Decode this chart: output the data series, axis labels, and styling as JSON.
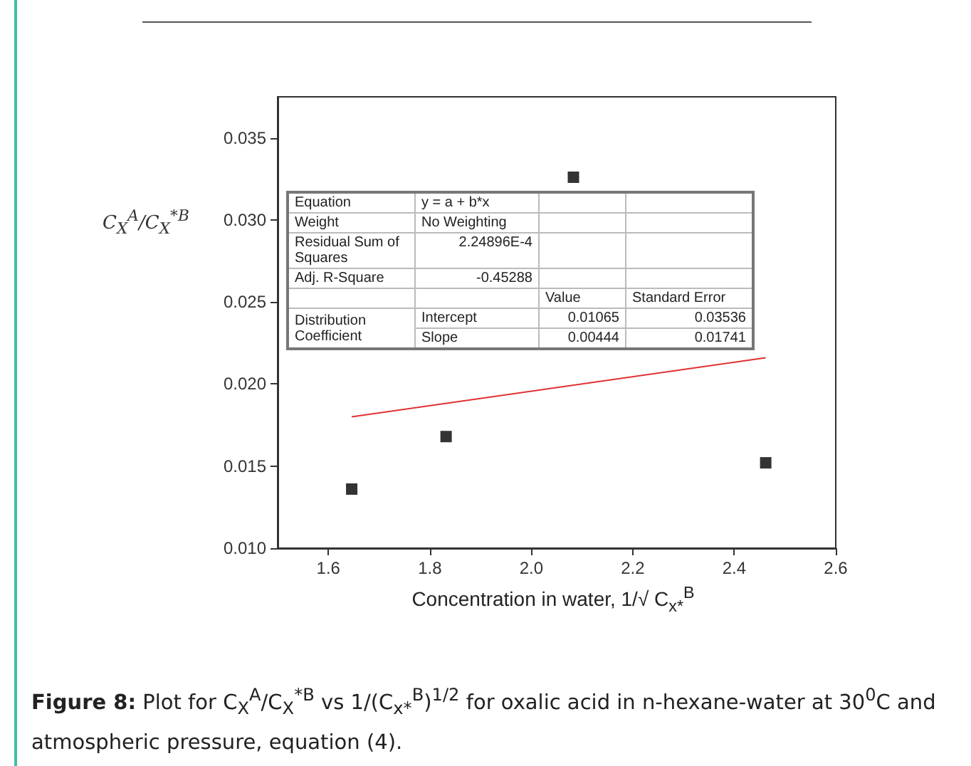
{
  "chart_data": {
    "type": "scatter",
    "xlabel": "Concentration in water, 1/√ C$_{x*}$$^{B}$",
    "ylabel": "C$_{X}$$^{A}$/C$_{X}$$^{*B}$",
    "x": [
      1.646,
      1.832,
      2.083,
      2.462
    ],
    "series": [
      {
        "color": "#000000",
        "marker": "square",
        "values": [
          0.0136,
          0.0168,
          0.0326,
          0.0152
        ]
      },
      {
        "type": "line",
        "color": "#e03030",
        "line_style": "solid",
        "marker": "none",
        "x": [
          1.646,
          2.462
        ],
        "values": [
          0.018,
          0.0216
        ]
      }
    ],
    "xlim": [
      1.5,
      2.6
    ],
    "xticks": [
      1.6,
      1.8,
      {
        "value": 2.0,
        "label": "2.0"
      },
      2.2,
      2.4,
      2.6
    ],
    "ylim": [
      0.01,
      0.0375
    ],
    "yticks": [
      {
        "value": 0.01,
        "label": "0.010"
      },
      0.015,
      {
        "value": 0.02,
        "label": "0.020"
      },
      0.025,
      {
        "value": 0.03,
        "label": "0.030"
      },
      0.035
    ],
    "grid": false,
    "annotations": [
      "Equation",
      "y = a + b*x",
      "Weight",
      "No Weighting",
      "Residual Sum of Squares",
      "2.24896E-4",
      "Adj. R-Square",
      "-0.45288",
      "Value",
      "Standard Error",
      "Distribution Coefficient",
      "Intercept",
      "0.01065",
      "0.03536",
      "Slope",
      "0.00444",
      "0.01741",
      "Figure 8: Plot for C$_{X}$$^{A}$/C$_{X}$$^{*B}$ vs 1/(C$_{x*}$$^{B}$)$^{1/2}$ for oxalic acid in n-hexane-water at 30$^{0}$C and atmospheric pressure, equation (4)."
    ]
  }
}
